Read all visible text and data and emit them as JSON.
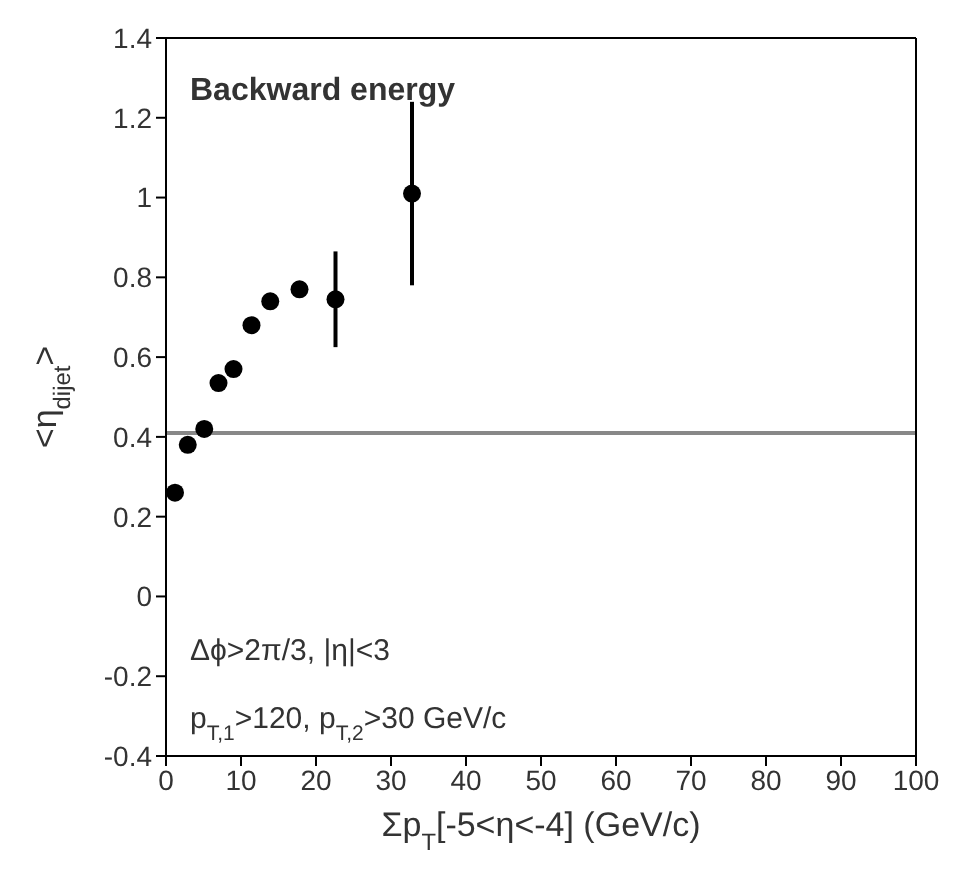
{
  "chart_data": {
    "type": "scatter",
    "xlabel": "Σp$_{T}$[-5<η<-4] (GeV/c)",
    "ylabel": "<η$_{dijet}$>",
    "annotations": [
      "Backward energy",
      "Δϕ>2π/3, |η|<3",
      "p$_{T,1}$>120, p$_{T,2}$>30 GeV/c"
    ],
    "x": [
      1.2,
      2.9,
      5.1,
      7.0,
      9.0,
      11.4,
      13.9,
      17.8,
      22.6,
      32.8
    ],
    "series": [
      {
        "color": "#000000",
        "values": [
          0.26,
          0.38,
          0.42,
          0.535,
          0.57,
          0.68,
          0.74,
          0.77,
          0.745,
          1.01
        ],
        "errors": [
          null,
          null,
          null,
          null,
          null,
          null,
          0.02,
          0.02,
          0.12,
          0.23
        ]
      }
    ],
    "marker": "circle",
    "xlim": [
      0,
      100
    ],
    "ylim": [
      -0.4,
      1.4
    ],
    "xticks": [
      0,
      10,
      20,
      30,
      40,
      50,
      60,
      70,
      80,
      90,
      100
    ],
    "yticks": [
      -0.4,
      -0.2,
      0,
      0.2,
      0.4,
      0.6,
      0.8,
      1,
      1.2,
      1.4
    ],
    "ref_lines": [
      {
        "axis": "y",
        "value": 0.41,
        "color": "#888888"
      }
    ]
  }
}
